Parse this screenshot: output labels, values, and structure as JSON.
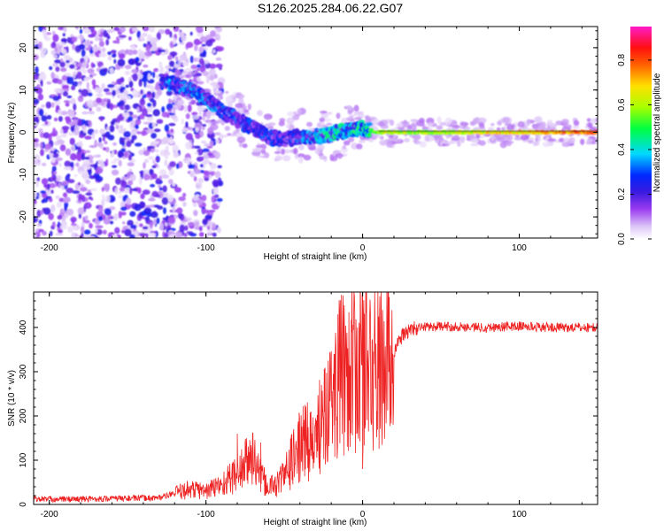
{
  "figure_title": "S126.2025.284.06.22.G07",
  "colors": {
    "snr_line": "#ee2222",
    "spectrogram_background": "#ffffff"
  },
  "colorbar": {
    "label": "Normalized spectral amplitude",
    "range": [
      0.0,
      0.95
    ],
    "ticks": [
      "0.0",
      "0.2",
      "0.4",
      "0.6",
      "0.8"
    ],
    "tick_values": [
      0.0,
      0.2,
      0.4,
      0.6,
      0.8
    ],
    "colormap": "rainbow (white-violet-purple-blue-cyan-green-yellow-orange-red-magenta)"
  },
  "chart_data": [
    {
      "type": "heatmap",
      "title": "S126.2025.284.06.22.G07",
      "xlabel": "Height of straight line (km)",
      "ylabel": "Frequency (Hz)",
      "xlim": [
        -210,
        150
      ],
      "ylim": [
        -25,
        25
      ],
      "xticks": [
        -200,
        -100,
        0,
        100
      ],
      "xtick_labels": [
        "-200",
        "-100",
        "0",
        "100"
      ],
      "yticks": [
        -20,
        -10,
        0,
        10,
        20
      ],
      "ytick_labels": [
        "-20",
        "-10",
        "0",
        "10",
        "20"
      ],
      "ridge": {
        "description": "dominant frequency ridge (Hz) vs height (km)",
        "x": [
          -125,
          -110,
          -100,
          -90,
          -80,
          -70,
          -60,
          -50,
          -40,
          -30,
          -20,
          -10,
          0,
          10,
          50,
          100,
          150
        ],
        "y": [
          12,
          10,
          8,
          5,
          3,
          1,
          -1,
          -2,
          -1,
          -1,
          -0.5,
          0.5,
          1,
          0,
          0,
          0,
          0
        ],
        "amplitude": [
          0.35,
          0.35,
          0.35,
          0.33,
          0.3,
          0.3,
          0.3,
          0.28,
          0.35,
          0.4,
          0.45,
          0.45,
          0.5,
          0.6,
          0.6,
          0.7,
          0.8
        ]
      },
      "noise_region_x": [
        -210,
        -105
      ]
    },
    {
      "type": "line",
      "xlabel": "Height of straight line (km)",
      "ylabel": "SNR (10 * v/v)",
      "xlim": [
        -210,
        150
      ],
      "ylim": [
        0,
        480
      ],
      "xticks": [
        -200,
        -100,
        0,
        100
      ],
      "xtick_labels": [
        "-200",
        "-100",
        "0",
        "100"
      ],
      "yticks": [
        0,
        100,
        200,
        300,
        400
      ],
      "ytick_labels": [
        "0",
        "100",
        "200",
        "300",
        "400"
      ],
      "series": [
        {
          "name": "SNR",
          "x": [
            -210,
            -180,
            -150,
            -130,
            -120,
            -110,
            -100,
            -90,
            -80,
            -75,
            -70,
            -65,
            -60,
            -55,
            -50,
            -45,
            -40,
            -35,
            -30,
            -25,
            -20,
            -15,
            -10,
            -5,
            0,
            5,
            10,
            15,
            20,
            25,
            30,
            40,
            60,
            80,
            100,
            120,
            150
          ],
          "y": [
            12,
            12,
            14,
            15,
            25,
            35,
            30,
            45,
            70,
            90,
            110,
            60,
            40,
            45,
            65,
            100,
            130,
            150,
            120,
            250,
            230,
            280,
            320,
            300,
            330,
            300,
            300,
            315,
            345,
            380,
            395,
            402,
            402,
            400,
            403,
            400,
            400
          ]
        }
      ],
      "spikes": [
        {
          "x": -80,
          "y": 160
        },
        {
          "x": -75,
          "y": 140
        },
        {
          "x": -65,
          "y": 140
        },
        {
          "x": -38,
          "y": 190
        },
        {
          "x": -33,
          "y": 210
        },
        {
          "x": -22,
          "y": 325
        },
        {
          "x": -18,
          "y": 340
        },
        {
          "x": -5,
          "y": 378
        },
        {
          "x": 0,
          "y": 480
        },
        {
          "x": 0,
          "y": 80
        }
      ]
    }
  ]
}
